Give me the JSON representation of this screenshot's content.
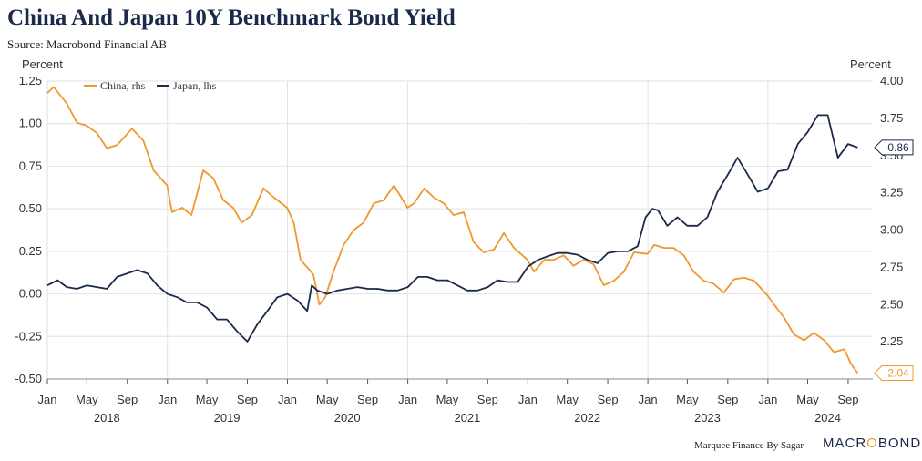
{
  "title": "China And Japan 10Y Benchmark Bond Yield",
  "source": "Source: Macrobond Financial AB",
  "credit": "Marquee Finance By Sagar",
  "brand": {
    "pre": "MACR",
    "mid": "O",
    "post": "BOND"
  },
  "colors": {
    "china": "#f0982f",
    "japan": "#1b2a4a",
    "grid": "#e2e2e2"
  },
  "chart_data": {
    "type": "line",
    "title": "China And Japan 10Y Benchmark Bond Yield",
    "left_axis": {
      "label": "Percent",
      "ylim": [
        -0.5,
        1.25
      ],
      "ticks": [
        "1.25",
        "1.00",
        "0.75",
        "0.50",
        "0.25",
        "0.00",
        "-0.25",
        "-0.50"
      ]
    },
    "right_axis": {
      "label": "Percent",
      "ylim": [
        2.0,
        4.0
      ],
      "ticks": [
        "4.00",
        "3.75",
        "3.50",
        "3.25",
        "3.00",
        "2.75",
        "2.50",
        "2.25"
      ]
    },
    "x_ticks": [
      "Jan",
      "May",
      "Sep",
      "Jan",
      "May",
      "Sep",
      "Jan",
      "May",
      "Sep",
      "Jan",
      "May",
      "Sep",
      "Jan",
      "May",
      "Sep",
      "Jan",
      "May",
      "Sep",
      "Jan",
      "May",
      "Sep"
    ],
    "years": [
      "2018",
      "2019",
      "2020",
      "2021",
      "2022",
      "2023",
      "2024"
    ],
    "legend_position": "top-left",
    "grid": true,
    "series": [
      {
        "name": "China, rhs",
        "axis": "right",
        "end_label": "2.04",
        "points": [
          [
            "2018-01-01",
            3.92
          ],
          [
            "2018-01-20",
            3.96
          ],
          [
            "2018-03-01",
            3.85
          ],
          [
            "2018-04-01",
            3.72
          ],
          [
            "2018-05-01",
            3.7
          ],
          [
            "2018-06-01",
            3.65
          ],
          [
            "2018-07-01",
            3.55
          ],
          [
            "2018-08-01",
            3.57
          ],
          [
            "2018-09-15",
            3.68
          ],
          [
            "2018-10-20",
            3.6
          ],
          [
            "2018-11-20",
            3.4
          ],
          [
            "2018-12-31",
            3.3
          ],
          [
            "2019-01-15",
            3.12
          ],
          [
            "2019-02-15",
            3.15
          ],
          [
            "2019-03-15",
            3.1
          ],
          [
            "2019-04-20",
            3.4
          ],
          [
            "2019-05-20",
            3.35
          ],
          [
            "2019-06-20",
            3.2
          ],
          [
            "2019-07-20",
            3.15
          ],
          [
            "2019-08-15",
            3.05
          ],
          [
            "2019-09-15",
            3.1
          ],
          [
            "2019-10-20",
            3.28
          ],
          [
            "2019-11-20",
            3.22
          ],
          [
            "2019-12-31",
            3.15
          ],
          [
            "2020-01-20",
            3.05
          ],
          [
            "2020-02-10",
            2.8
          ],
          [
            "2020-03-01",
            2.75
          ],
          [
            "2020-03-20",
            2.7
          ],
          [
            "2020-04-07",
            2.5
          ],
          [
            "2020-04-25",
            2.55
          ],
          [
            "2020-05-20",
            2.72
          ],
          [
            "2020-06-20",
            2.9
          ],
          [
            "2020-07-20",
            3.0
          ],
          [
            "2020-08-20",
            3.05
          ],
          [
            "2020-09-20",
            3.18
          ],
          [
            "2020-10-20",
            3.2
          ],
          [
            "2020-11-20",
            3.3
          ],
          [
            "2020-12-31",
            3.15
          ],
          [
            "2021-01-20",
            3.18
          ],
          [
            "2021-02-20",
            3.28
          ],
          [
            "2021-03-20",
            3.22
          ],
          [
            "2021-04-20",
            3.18
          ],
          [
            "2021-05-20",
            3.1
          ],
          [
            "2021-06-20",
            3.12
          ],
          [
            "2021-07-20",
            2.92
          ],
          [
            "2021-08-20",
            2.85
          ],
          [
            "2021-09-20",
            2.87
          ],
          [
            "2021-10-20",
            2.98
          ],
          [
            "2021-11-20",
            2.88
          ],
          [
            "2021-12-31",
            2.8
          ],
          [
            "2022-01-20",
            2.72
          ],
          [
            "2022-02-20",
            2.8
          ],
          [
            "2022-03-20",
            2.8
          ],
          [
            "2022-04-20",
            2.83
          ],
          [
            "2022-05-20",
            2.76
          ],
          [
            "2022-06-20",
            2.8
          ],
          [
            "2022-07-20",
            2.77
          ],
          [
            "2022-08-20",
            2.63
          ],
          [
            "2022-09-20",
            2.66
          ],
          [
            "2022-10-20",
            2.72
          ],
          [
            "2022-11-20",
            2.85
          ],
          [
            "2022-12-31",
            2.84
          ],
          [
            "2023-01-20",
            2.9
          ],
          [
            "2023-02-20",
            2.88
          ],
          [
            "2023-03-20",
            2.88
          ],
          [
            "2023-04-20",
            2.83
          ],
          [
            "2023-05-20",
            2.72
          ],
          [
            "2023-06-20",
            2.66
          ],
          [
            "2023-07-20",
            2.64
          ],
          [
            "2023-08-20",
            2.58
          ],
          [
            "2023-09-20",
            2.67
          ],
          [
            "2023-10-20",
            2.68
          ],
          [
            "2023-11-20",
            2.66
          ],
          [
            "2023-12-31",
            2.56
          ],
          [
            "2024-01-20",
            2.5
          ],
          [
            "2024-02-20",
            2.41
          ],
          [
            "2024-03-20",
            2.3
          ],
          [
            "2024-04-20",
            2.26
          ],
          [
            "2024-05-20",
            2.31
          ],
          [
            "2024-06-20",
            2.26
          ],
          [
            "2024-07-20",
            2.18
          ],
          [
            "2024-08-20",
            2.2
          ],
          [
            "2024-09-10",
            2.1
          ],
          [
            "2024-09-30",
            2.04
          ]
        ]
      },
      {
        "name": "Japan, lhs",
        "axis": "left",
        "end_label": "0.86",
        "points": [
          [
            "2018-01-01",
            0.05
          ],
          [
            "2018-02-01",
            0.08
          ],
          [
            "2018-03-01",
            0.04
          ],
          [
            "2018-04-01",
            0.03
          ],
          [
            "2018-05-01",
            0.05
          ],
          [
            "2018-06-01",
            0.04
          ],
          [
            "2018-07-01",
            0.03
          ],
          [
            "2018-08-01",
            0.1
          ],
          [
            "2018-09-01",
            0.12
          ],
          [
            "2018-10-01",
            0.14
          ],
          [
            "2018-11-01",
            0.12
          ],
          [
            "2018-12-01",
            0.05
          ],
          [
            "2019-01-01",
            0.0
          ],
          [
            "2019-02-01",
            -0.02
          ],
          [
            "2019-03-01",
            -0.05
          ],
          [
            "2019-04-01",
            -0.05
          ],
          [
            "2019-05-01",
            -0.08
          ],
          [
            "2019-06-01",
            -0.15
          ],
          [
            "2019-07-01",
            -0.15
          ],
          [
            "2019-08-01",
            -0.22
          ],
          [
            "2019-09-01",
            -0.28
          ],
          [
            "2019-10-01",
            -0.18
          ],
          [
            "2019-11-01",
            -0.1
          ],
          [
            "2019-12-01",
            -0.02
          ],
          [
            "2020-01-01",
            0.0
          ],
          [
            "2020-02-01",
            -0.04
          ],
          [
            "2020-03-01",
            -0.1
          ],
          [
            "2020-03-15",
            0.05
          ],
          [
            "2020-04-01",
            0.02
          ],
          [
            "2020-05-01",
            0.0
          ],
          [
            "2020-06-01",
            0.02
          ],
          [
            "2020-07-01",
            0.03
          ],
          [
            "2020-08-01",
            0.04
          ],
          [
            "2020-09-01",
            0.03
          ],
          [
            "2020-10-01",
            0.03
          ],
          [
            "2020-11-01",
            0.02
          ],
          [
            "2020-12-01",
            0.02
          ],
          [
            "2021-01-01",
            0.04
          ],
          [
            "2021-02-01",
            0.1
          ],
          [
            "2021-03-01",
            0.1
          ],
          [
            "2021-04-01",
            0.08
          ],
          [
            "2021-05-01",
            0.08
          ],
          [
            "2021-06-01",
            0.05
          ],
          [
            "2021-07-01",
            0.02
          ],
          [
            "2021-08-01",
            0.02
          ],
          [
            "2021-09-01",
            0.04
          ],
          [
            "2021-10-01",
            0.08
          ],
          [
            "2021-11-01",
            0.07
          ],
          [
            "2021-12-01",
            0.07
          ],
          [
            "2022-01-01",
            0.16
          ],
          [
            "2022-02-01",
            0.2
          ],
          [
            "2022-03-01",
            0.22
          ],
          [
            "2022-04-01",
            0.24
          ],
          [
            "2022-05-01",
            0.24
          ],
          [
            "2022-06-01",
            0.23
          ],
          [
            "2022-07-01",
            0.2
          ],
          [
            "2022-08-01",
            0.18
          ],
          [
            "2022-09-01",
            0.24
          ],
          [
            "2022-10-01",
            0.25
          ],
          [
            "2022-11-01",
            0.25
          ],
          [
            "2022-12-01",
            0.28
          ],
          [
            "2022-12-25",
            0.45
          ],
          [
            "2023-01-15",
            0.5
          ],
          [
            "2023-02-01",
            0.49
          ],
          [
            "2023-03-01",
            0.4
          ],
          [
            "2023-04-01",
            0.45
          ],
          [
            "2023-05-01",
            0.4
          ],
          [
            "2023-06-01",
            0.4
          ],
          [
            "2023-07-01",
            0.45
          ],
          [
            "2023-08-01",
            0.6
          ],
          [
            "2023-09-01",
            0.7
          ],
          [
            "2023-10-01",
            0.8
          ],
          [
            "2023-11-01",
            0.7
          ],
          [
            "2023-12-01",
            0.6
          ],
          [
            "2024-01-01",
            0.62
          ],
          [
            "2024-02-01",
            0.72
          ],
          [
            "2024-03-01",
            0.73
          ],
          [
            "2024-04-01",
            0.88
          ],
          [
            "2024-05-01",
            0.95
          ],
          [
            "2024-06-01",
            1.05
          ],
          [
            "2024-07-01",
            1.05
          ],
          [
            "2024-08-01",
            0.8
          ],
          [
            "2024-09-01",
            0.88
          ],
          [
            "2024-09-30",
            0.86
          ]
        ]
      }
    ]
  }
}
